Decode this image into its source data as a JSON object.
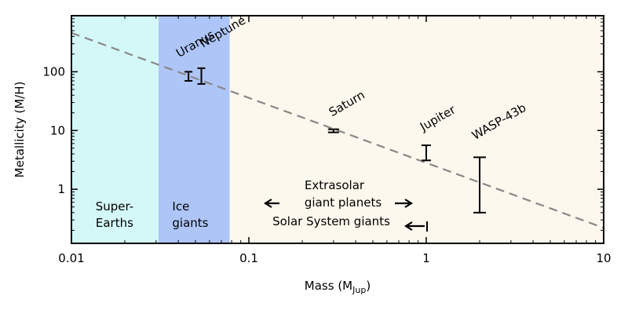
{
  "chart_data": {
    "type": "scatter",
    "xlabel_main": "Mass (M",
    "xlabel_sub": "Jup",
    "xlabel_close": ")",
    "ylabel": "Metallicity (M/H)",
    "xscale": "log",
    "yscale": "log",
    "xlim": [
      0.01,
      10
    ],
    "ylim": [
      0.12,
      900
    ],
    "x_ticks": [
      {
        "value": 0.01,
        "label": "0.01"
      },
      {
        "value": 0.1,
        "label": "0.1"
      },
      {
        "value": 1,
        "label": "1"
      },
      {
        "value": 10,
        "label": "10"
      }
    ],
    "y_ticks": [
      {
        "value": 1,
        "label": "1"
      },
      {
        "value": 10,
        "label": "10"
      },
      {
        "value": 100,
        "label": "100"
      }
    ],
    "regions": [
      {
        "name": "super-earths",
        "x_from": 0.01,
        "x_to": 0.031,
        "color": "#d4f8f8",
        "label_lines": [
          "Super-",
          "Earths"
        ],
        "label_x": 0.0175
      },
      {
        "name": "ice-giants",
        "x_from": 0.031,
        "x_to": 0.078,
        "color": "#aec5f8",
        "label_lines": [
          "Ice",
          "giants"
        ],
        "label_x": 0.037
      },
      {
        "name": "gas-giants",
        "x_from": 0.078,
        "x_to": 10,
        "color": "#fdf8ee",
        "label_lines": [],
        "label_x": 0
      }
    ],
    "trend_line": {
      "x": [
        0.01,
        10
      ],
      "y": [
        460,
        0.22
      ],
      "color": "#888888",
      "style": "dashed"
    },
    "points": [
      {
        "name": "Uranus",
        "x": 0.0457,
        "y_low": 70,
        "y_high": 100,
        "y": 84
      },
      {
        "name": "Neptune",
        "x": 0.054,
        "y_low": 62,
        "y_high": 115,
        "y": 85
      },
      {
        "name": "Saturn",
        "x": 0.3,
        "y_low": 9.3,
        "y_high": 10.5,
        "y": 9.9
      },
      {
        "name": "Jupiter",
        "x": 1.0,
        "y_low": 3.1,
        "y_high": 5.6,
        "y": 4.2
      },
      {
        "name": "WASP-43b",
        "x": 2.0,
        "y_low": 0.4,
        "y_high": 3.5,
        "y": 1.2
      }
    ],
    "annotations": {
      "extrasolar_line1": "Extrasolar",
      "extrasolar_line2": "giant planets",
      "solar_system": "Solar System giants"
    },
    "grid": false,
    "legend": "none"
  }
}
